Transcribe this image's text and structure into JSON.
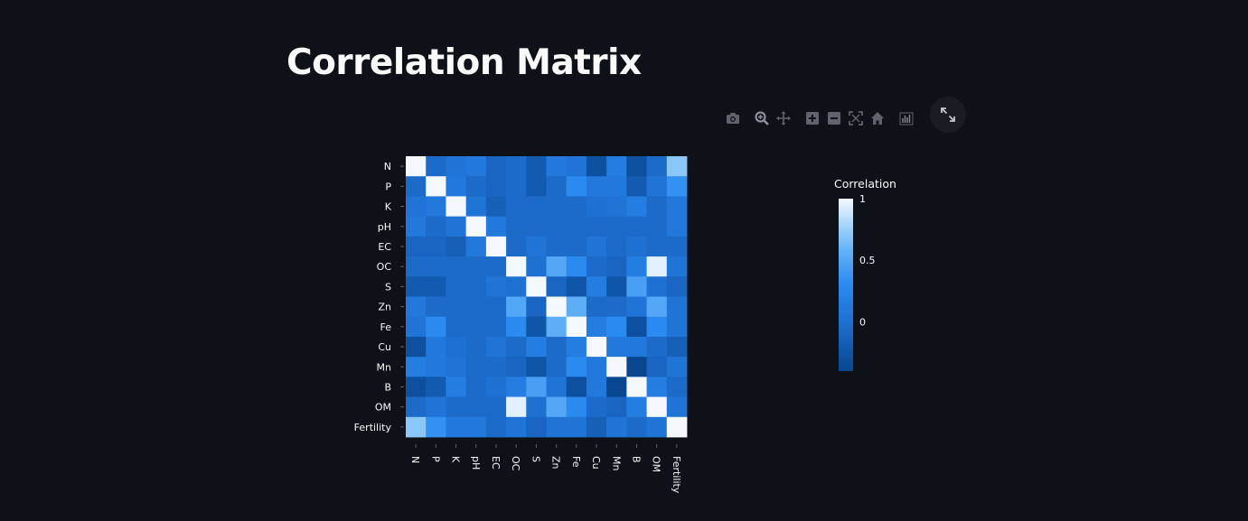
{
  "page": {
    "title": "Correlation Matrix"
  },
  "modebar": {
    "icons": [
      "camera-icon",
      "zoom-icon",
      "pan-icon",
      "zoom-in-icon",
      "zoom-out-icon",
      "autoscale-icon",
      "home-icon",
      "spike-lines-icon"
    ],
    "fullscreen_icon": "expand-icon"
  },
  "colors": {
    "background": "#0e1117",
    "text": "#fafafa",
    "icon": "#5f636b",
    "colorscale": [
      "#08468f",
      "#1e84e8",
      "#4aa3f5",
      "#9ed0fa",
      "#f4f9ff"
    ]
  },
  "chart_data": {
    "type": "heatmap",
    "x_labels": [
      "N",
      "P",
      "K",
      "pH",
      "EC",
      "OC",
      "S",
      "Zn",
      "Fe",
      "Cu",
      "Mn",
      "B",
      "OM",
      "Fertility"
    ],
    "y_labels": [
      "N",
      "P",
      "K",
      "pH",
      "EC",
      "OC",
      "S",
      "Zn",
      "Fe",
      "Cu",
      "Mn",
      "B",
      "OM",
      "Fertility"
    ],
    "zmin": -0.4,
    "zmax": 1,
    "colorbar": {
      "title": "Correlation",
      "ticks": [
        1,
        0.5,
        0
      ],
      "tick_labels": [
        "1",
        "0.5",
        "0"
      ]
    },
    "values": [
      [
        1.0,
        -0.05,
        0.05,
        0.1,
        -0.1,
        -0.05,
        -0.2,
        0.1,
        0.05,
        -0.3,
        0.15,
        -0.3,
        -0.05,
        0.7
      ],
      [
        -0.05,
        1.0,
        0.1,
        -0.05,
        -0.1,
        -0.05,
        -0.2,
        -0.05,
        0.3,
        0.1,
        0.1,
        -0.2,
        0.05,
        0.35
      ],
      [
        0.05,
        0.1,
        1.0,
        0.05,
        -0.15,
        -0.05,
        -0.05,
        -0.05,
        -0.05,
        0.0,
        0.05,
        0.15,
        -0.05,
        0.1
      ],
      [
        0.1,
        -0.05,
        0.05,
        1.0,
        0.1,
        -0.05,
        -0.05,
        -0.05,
        -0.05,
        -0.05,
        -0.05,
        -0.05,
        -0.05,
        0.1
      ],
      [
        -0.1,
        -0.1,
        -0.15,
        0.1,
        1.0,
        -0.05,
        0.05,
        -0.05,
        -0.05,
        0.05,
        -0.05,
        0.0,
        -0.05,
        -0.05
      ],
      [
        -0.05,
        -0.05,
        -0.05,
        -0.05,
        -0.05,
        1.0,
        0.0,
        0.5,
        0.3,
        -0.05,
        -0.1,
        0.15,
        0.95,
        0.05
      ],
      [
        -0.2,
        -0.2,
        -0.05,
        -0.05,
        0.05,
        0.0,
        1.0,
        -0.1,
        -0.25,
        0.15,
        -0.25,
        0.45,
        0.0,
        -0.1
      ],
      [
        0.1,
        -0.05,
        -0.05,
        -0.05,
        -0.05,
        0.5,
        -0.1,
        1.0,
        0.55,
        -0.05,
        -0.05,
        0.05,
        0.5,
        0.05
      ],
      [
        0.05,
        0.3,
        -0.05,
        -0.05,
        -0.05,
        0.3,
        -0.25,
        0.55,
        1.0,
        0.15,
        0.3,
        -0.3,
        0.3,
        0.05
      ],
      [
        -0.3,
        0.1,
        0.0,
        -0.05,
        0.05,
        -0.05,
        0.15,
        -0.05,
        0.15,
        1.0,
        0.1,
        0.1,
        -0.05,
        -0.15
      ],
      [
        0.15,
        0.1,
        0.05,
        -0.05,
        -0.05,
        -0.1,
        -0.25,
        -0.05,
        0.3,
        0.1,
        1.0,
        -0.4,
        -0.1,
        0.05
      ],
      [
        -0.3,
        -0.2,
        0.15,
        -0.05,
        0.0,
        0.15,
        0.45,
        0.05,
        -0.3,
        0.1,
        -0.4,
        1.0,
        0.15,
        -0.05
      ],
      [
        -0.05,
        0.05,
        -0.05,
        -0.05,
        -0.05,
        0.95,
        0.0,
        0.5,
        0.3,
        -0.05,
        -0.1,
        0.15,
        1.0,
        0.05
      ],
      [
        0.7,
        0.35,
        0.1,
        0.1,
        -0.05,
        0.05,
        -0.1,
        0.05,
        0.05,
        -0.15,
        0.05,
        -0.05,
        0.05,
        1.0
      ]
    ]
  }
}
